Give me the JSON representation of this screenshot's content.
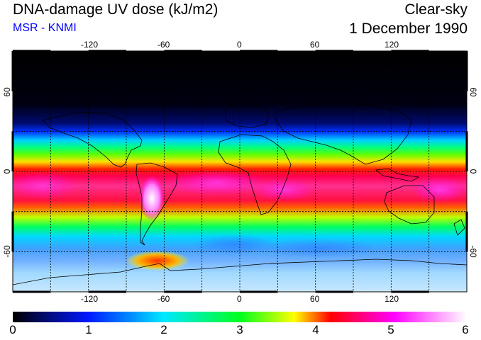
{
  "header": {
    "title": "DNA-damage UV dose (kJ/m2)",
    "source": "MSR - KNMI",
    "condition": "Clear-sky",
    "date": "1 December 1990"
  },
  "map": {
    "longitude_ticks": [
      "-120",
      "-60",
      "0",
      "60",
      "120"
    ],
    "latitude_ticks": [
      "60",
      "0",
      "-60"
    ],
    "graticule_longitudes": [
      -150,
      -120,
      -90,
      -60,
      -30,
      0,
      30,
      60,
      90,
      120,
      150
    ],
    "graticule_latitudes": [
      60,
      30,
      0,
      -30,
      -60
    ],
    "projection": "equirectangular, 180W to 180E, 90N to 90S"
  },
  "colorbar": {
    "labels": [
      "0",
      "1",
      "2",
      "3",
      "4",
      "5",
      "6"
    ],
    "min": 0,
    "max": 6,
    "colors": [
      "#000000",
      "#0018ff",
      "#00e8ff",
      "#00ff20",
      "#ffff00",
      "#ff0000",
      "#ff00ff",
      "#ffffff"
    ]
  }
}
